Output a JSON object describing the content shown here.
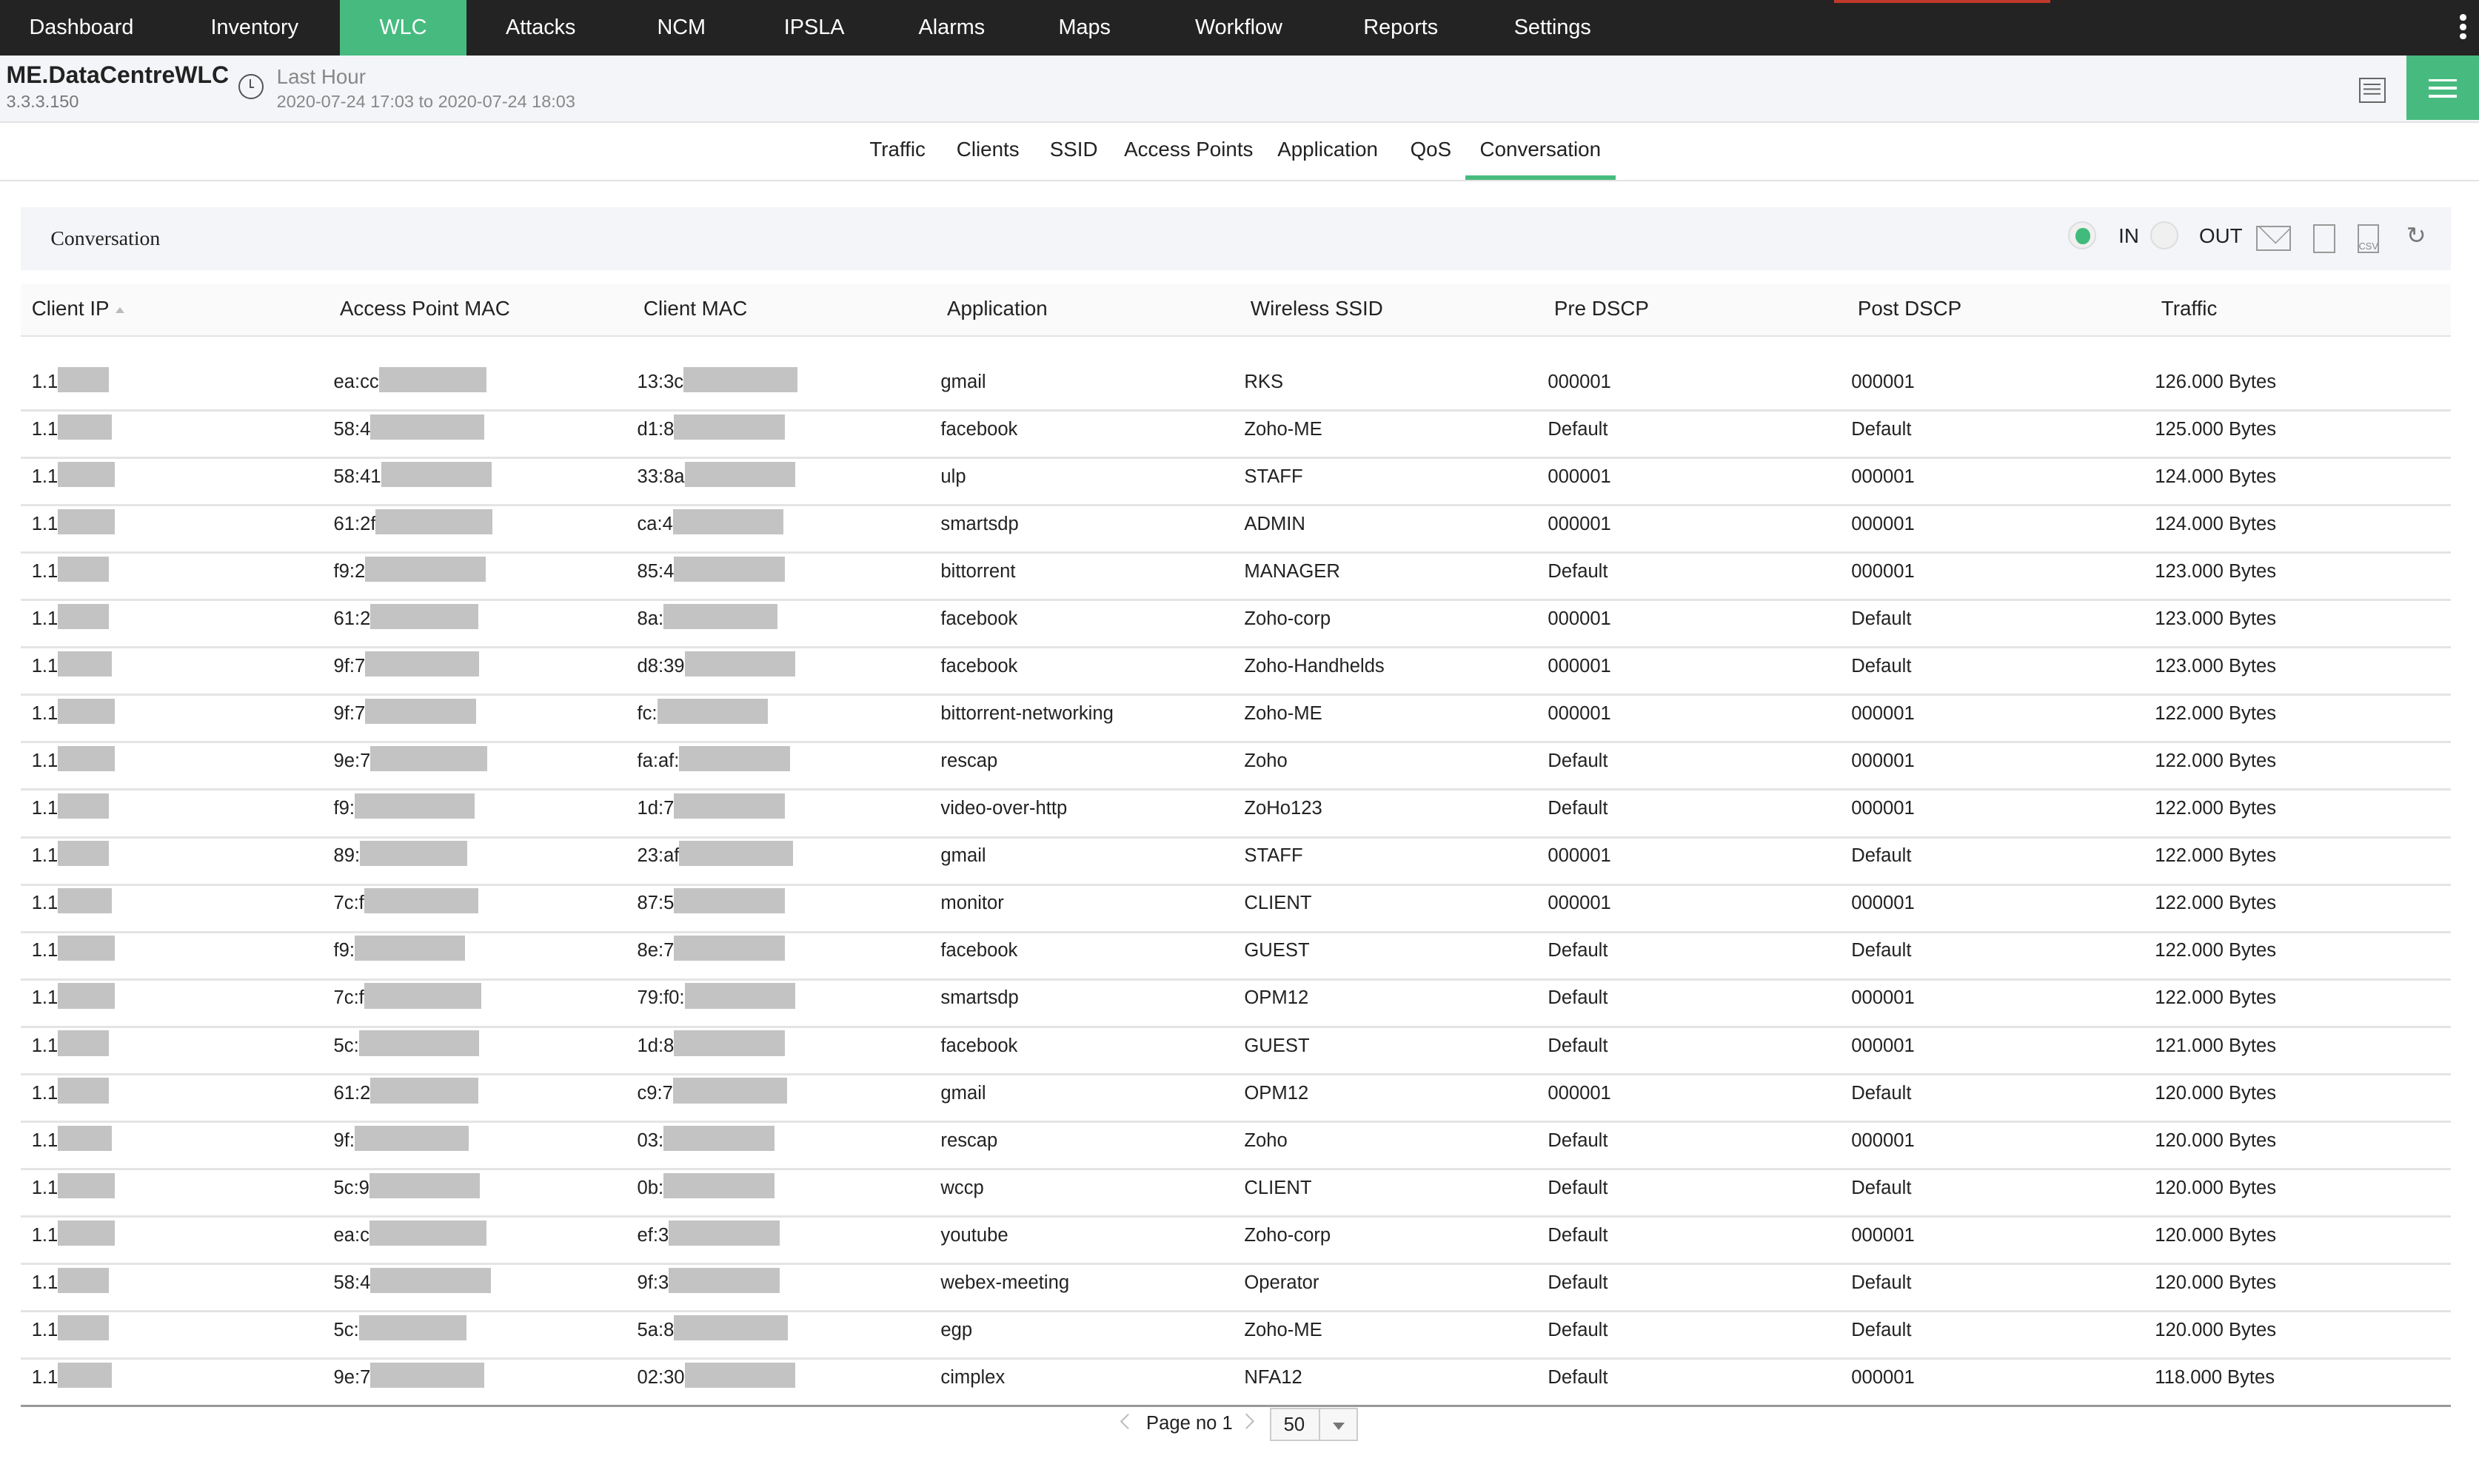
{
  "topnav": {
    "items": [
      "Dashboard",
      "Inventory",
      "WLC",
      "Attacks",
      "NCM",
      "IPSLA",
      "Alarms",
      "Maps",
      "Workflow",
      "Reports",
      "Settings"
    ],
    "active": "WLC"
  },
  "device": {
    "name": "ME.DataCentreWLC",
    "ip": "3.3.3.150",
    "period": "Last Hour",
    "range": "2020-07-24 17:03 to 2020-07-24 18:03"
  },
  "tabs": {
    "items": [
      "Traffic",
      "Clients",
      "SSID",
      "Access Points",
      "Application",
      "QoS",
      "Conversation"
    ],
    "active": "Conversation"
  },
  "panel": {
    "title": "Conversation",
    "in_label": "IN",
    "out_label": "OUT",
    "selected": "IN",
    "csv": "CSV"
  },
  "colors": {
    "accent": "#47bb7f",
    "nav": "#232323"
  },
  "table": {
    "headers": [
      "Client IP",
      "Access Point MAC",
      "Client MAC",
      "Application",
      "Wireless SSID",
      "Pre DSCP",
      "Post DSCP",
      "Traffic"
    ],
    "rows": [
      [
        "1.1",
        "ea:cc",
        "13:3c",
        "gmail",
        "RKS",
        "000001",
        "000001",
        "126.000 Bytes"
      ],
      [
        "1.1",
        "58:4",
        "d1:8",
        "facebook",
        "Zoho-ME",
        "Default",
        "Default",
        "125.000 Bytes"
      ],
      [
        "1.1",
        "58:41",
        "33:8a",
        "ulp",
        "STAFF",
        "000001",
        "000001",
        "124.000 Bytes"
      ],
      [
        "1.1",
        "61:2f",
        "ca:4",
        "smartsdp",
        "ADMIN",
        "000001",
        "000001",
        "124.000 Bytes"
      ],
      [
        "1.1",
        "f9:2",
        "85:4",
        "bittorrent",
        "MANAGER",
        "Default",
        "000001",
        "123.000 Bytes"
      ],
      [
        "1.1",
        "61:2",
        "8a:",
        "facebook",
        "Zoho-corp",
        "000001",
        "Default",
        "123.000 Bytes"
      ],
      [
        "1.1",
        "9f:7",
        "d8:39",
        "facebook",
        "Zoho-Handhelds",
        "000001",
        "Default",
        "123.000 Bytes"
      ],
      [
        "1.1",
        "9f:7",
        "fc:",
        "bittorrent-networking",
        "Zoho-ME",
        "000001",
        "000001",
        "122.000 Bytes"
      ],
      [
        "1.1",
        "9e:7",
        "fa:af:",
        "rescap",
        "Zoho",
        "Default",
        "000001",
        "122.000 Bytes"
      ],
      [
        "1.1",
        "f9:",
        "1d:7",
        "video-over-http",
        "ZoHo123",
        "Default",
        "000001",
        "122.000 Bytes"
      ],
      [
        "1.1",
        "89:",
        "23:af",
        "gmail",
        "STAFF",
        "000001",
        "Default",
        "122.000 Bytes"
      ],
      [
        "1.1",
        "7c:f",
        "87:5",
        "monitor",
        "CLIENT",
        "000001",
        "000001",
        "122.000 Bytes"
      ],
      [
        "1.1",
        "f9:",
        "8e:7",
        "facebook",
        "GUEST",
        "Default",
        "Default",
        "122.000 Bytes"
      ],
      [
        "1.1",
        "7c:f",
        "79:f0:",
        "smartsdp",
        "OPM12",
        "Default",
        "000001",
        "122.000 Bytes"
      ],
      [
        "1.1",
        "5c:",
        "1d:8",
        "facebook",
        "GUEST",
        "Default",
        "000001",
        "121.000 Bytes"
      ],
      [
        "1.1",
        "61:2",
        "c9:7",
        "gmail",
        "OPM12",
        "000001",
        "Default",
        "120.000 Bytes"
      ],
      [
        "1.1",
        "9f:",
        "03:",
        "rescap",
        "Zoho",
        "Default",
        "000001",
        "120.000 Bytes"
      ],
      [
        "1.1",
        "5c:9",
        "0b:",
        "wccp",
        "CLIENT",
        "Default",
        "Default",
        "120.000 Bytes"
      ],
      [
        "1.1",
        "ea:c",
        "ef:3",
        "youtube",
        "Zoho-corp",
        "Default",
        "000001",
        "120.000 Bytes"
      ],
      [
        "1.1",
        "58:4",
        "9f:3",
        "webex-meeting",
        "Operator",
        "Default",
        "Default",
        "120.000 Bytes"
      ],
      [
        "1.1",
        "5c:",
        "5a:8",
        "egp",
        "Zoho-ME",
        "Default",
        "Default",
        "120.000 Bytes"
      ],
      [
        "1.1",
        "9e:7",
        "02:30",
        "cimplex",
        "NFA12",
        "Default",
        "000001",
        "118.000 Bytes"
      ]
    ]
  },
  "pagination": {
    "page_label": "Page no 1",
    "page_size": "50"
  }
}
